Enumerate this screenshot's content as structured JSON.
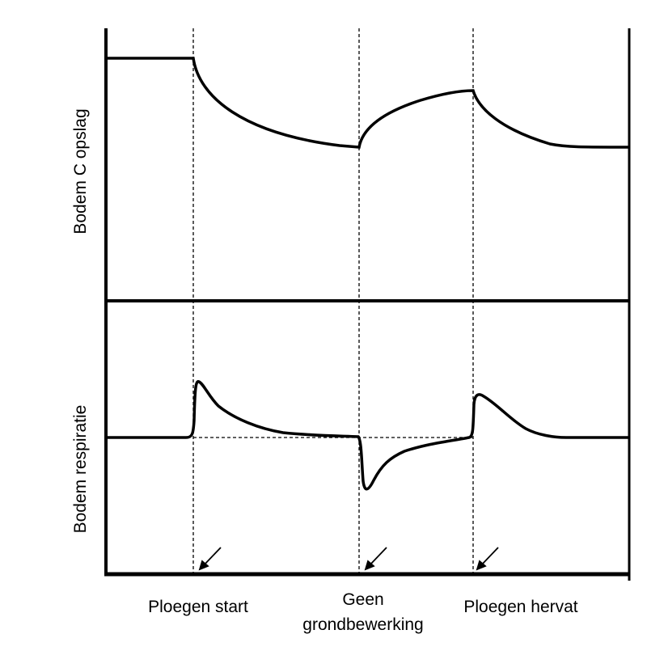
{
  "diagram": {
    "panels": [
      {
        "ylabel": "Bodem C opslag"
      },
      {
        "ylabel": "Bodem respiratie"
      }
    ],
    "events": [
      {
        "label_lines": [
          "Ploegen start"
        ]
      },
      {
        "label_lines": [
          "Geen",
          "grondbewerking"
        ]
      },
      {
        "label_lines": [
          "Ploegen hervat"
        ]
      }
    ],
    "line_color": "#000000"
  }
}
